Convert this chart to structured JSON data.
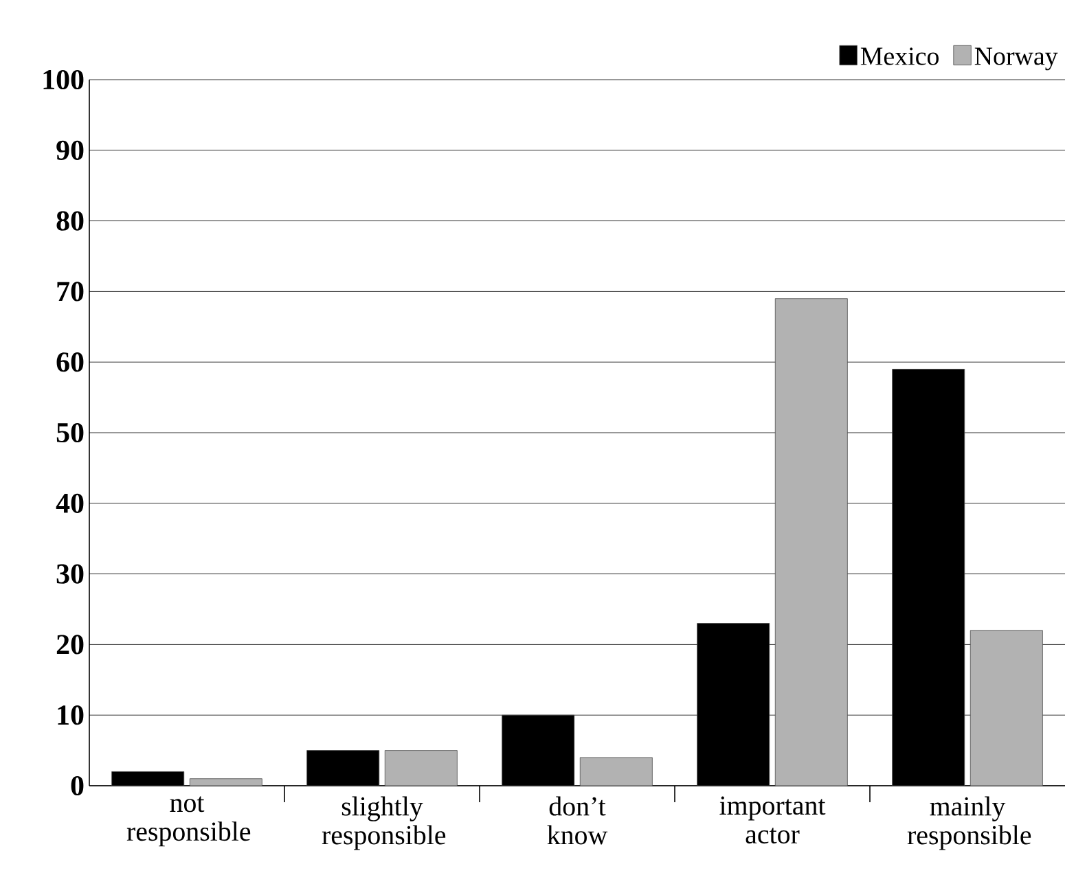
{
  "chart_data": {
    "type": "bar",
    "categories": [
      "not responsible",
      "slightly responsible",
      "don’t know",
      "important actor",
      "mainly responsible"
    ],
    "series": [
      {
        "name": "Mexico",
        "color": "#000000",
        "values": [
          2,
          5,
          10,
          23,
          59
        ]
      },
      {
        "name": "Norway",
        "color": "#b2b2b2",
        "values": [
          1,
          5,
          4,
          69,
          22
        ]
      }
    ],
    "ylim": [
      0,
      100
    ],
    "yticks": [
      0,
      10,
      20,
      30,
      40,
      50,
      60,
      70,
      80,
      90,
      100
    ],
    "grid": "y",
    "legend": "top right"
  }
}
